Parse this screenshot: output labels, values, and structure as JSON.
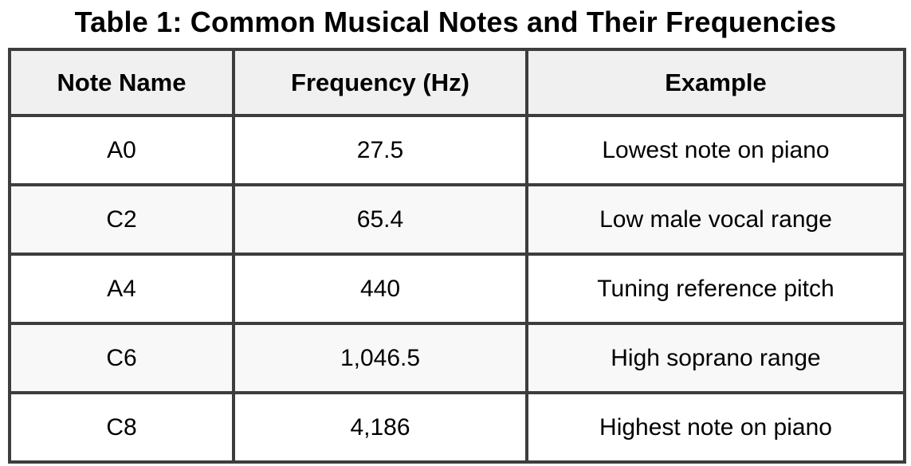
{
  "title": "Table 1: Common Musical Notes and Their Frequencies",
  "table": {
    "columns": [
      "Note Name",
      "Frequency (Hz)",
      "Example"
    ],
    "rows": [
      {
        "note": "A0",
        "frequency": "27.5",
        "example": "Lowest note on piano"
      },
      {
        "note": "C2",
        "frequency": "65.4",
        "example": "Low male vocal range"
      },
      {
        "note": "A4",
        "frequency": "440",
        "example": "Tuning reference pitch"
      },
      {
        "note": "C6",
        "frequency": "1,046.5",
        "example": "High soprano range"
      },
      {
        "note": "C8",
        "frequency": "4,186",
        "example": "Highest note on piano"
      }
    ]
  },
  "chart_data": {
    "type": "table",
    "title": "Table 1: Common Musical Notes and Their Frequencies",
    "columns": [
      "Note Name",
      "Frequency (Hz)",
      "Example"
    ],
    "rows": [
      [
        "A0",
        27.5,
        "Lowest note on piano"
      ],
      [
        "C2",
        65.4,
        "Low male vocal range"
      ],
      [
        "A4",
        440,
        "Tuning reference pitch"
      ],
      [
        "C6",
        1046.5,
        "High soprano range"
      ],
      [
        "C8",
        4186,
        "Highest note on piano"
      ]
    ]
  },
  "colors": {
    "border": "#3d3d3d",
    "header_bg": "#f0f0f0",
    "alt_row_bg": "#f8f8f8",
    "text": "#000000"
  }
}
